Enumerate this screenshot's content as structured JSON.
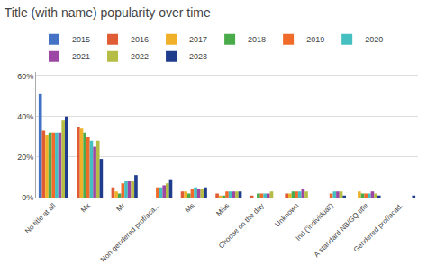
{
  "chart_data": {
    "type": "bar",
    "title": "Title (with name) popularity over time",
    "categories": [
      "No title at all",
      "Mx",
      "Mr",
      "Non-gendered prof/aca...",
      "Ms",
      "Miss",
      "Choose on the day",
      "Unknown",
      "Ind ('individual')",
      "A standard NB/GQ title",
      "Gendered prof/acad."
    ],
    "series": [
      {
        "name": "2015",
        "color": "#4472c4",
        "values": [
          51,
          0,
          0,
          0,
          0,
          0,
          0,
          0,
          0,
          0,
          0
        ]
      },
      {
        "name": "2016",
        "color": "#e05c35",
        "values": [
          33,
          35,
          5,
          0,
          3,
          2,
          1,
          2,
          0,
          0,
          0
        ]
      },
      {
        "name": "2017",
        "color": "#f0b129",
        "values": [
          31,
          34,
          3,
          0,
          3,
          1,
          0,
          2,
          0,
          3,
          0
        ]
      },
      {
        "name": "2018",
        "color": "#4aab4a",
        "values": [
          32,
          32,
          2,
          0,
          2,
          1,
          2,
          3,
          0,
          2,
          0
        ]
      },
      {
        "name": "2019",
        "color": "#f06a29",
        "values": [
          32,
          30,
          7,
          5,
          4,
          3,
          2,
          3,
          2,
          2,
          0
        ]
      },
      {
        "name": "2020",
        "color": "#45bfbf",
        "values": [
          32,
          28,
          8,
          5,
          5,
          3,
          2,
          3,
          3,
          2,
          0
        ]
      },
      {
        "name": "2021",
        "color": "#9c47a3",
        "values": [
          32,
          25,
          8,
          6,
          4,
          3,
          2,
          4,
          3,
          3,
          0
        ]
      },
      {
        "name": "2022",
        "color": "#b5bd44",
        "values": [
          38,
          28,
          8,
          7,
          4,
          3,
          3,
          3,
          3,
          2,
          0
        ]
      },
      {
        "name": "2023",
        "color": "#1f3d8c",
        "values": [
          40,
          19,
          11,
          9,
          5,
          3,
          0,
          0,
          1,
          1,
          1
        ]
      }
    ],
    "ylim": [
      0,
      62
    ],
    "yticks": [
      {
        "value": 0,
        "label": "0%"
      },
      {
        "value": 20,
        "label": "20%"
      },
      {
        "value": 40,
        "label": "40%"
      },
      {
        "value": 60,
        "label": "60%"
      }
    ],
    "grid": true,
    "legend": "upper left"
  }
}
